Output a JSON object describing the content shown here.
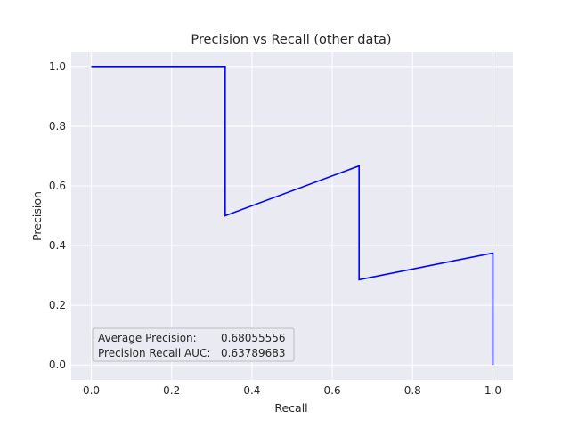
{
  "chart_data": {
    "type": "line",
    "title": "Precision vs Recall (other data)",
    "xlabel": "Recall",
    "ylabel": "Precision",
    "xlim": [
      -0.05,
      1.05
    ],
    "ylim": [
      -0.05,
      1.05
    ],
    "xticks": [
      0.0,
      0.2,
      0.4,
      0.6,
      0.8,
      1.0
    ],
    "yticks": [
      0.0,
      0.2,
      0.4,
      0.6,
      0.8,
      1.0
    ],
    "xtick_labels": [
      "0.0",
      "0.2",
      "0.4",
      "0.6",
      "0.8",
      "1.0"
    ],
    "ytick_labels": [
      "0.0",
      "0.2",
      "0.4",
      "0.6",
      "0.8",
      "1.0"
    ],
    "grid": true,
    "background_color": "#eaeaf2",
    "grid_color": "#ffffff",
    "series": [
      {
        "color": "#0000ff",
        "x": [
          0.0,
          0.3333,
          0.3333,
          0.6667,
          0.6667,
          1.0,
          1.0
        ],
        "y": [
          1.0,
          1.0,
          0.5,
          0.6667,
          0.2857,
          0.375,
          0.0
        ]
      }
    ],
    "annotation": {
      "placement": "lower-left",
      "lines": [
        {
          "label": "Average Precision:",
          "value": "0.68055556"
        },
        {
          "label": "Precision Recall AUC:",
          "value": "0.63789683"
        }
      ]
    }
  }
}
